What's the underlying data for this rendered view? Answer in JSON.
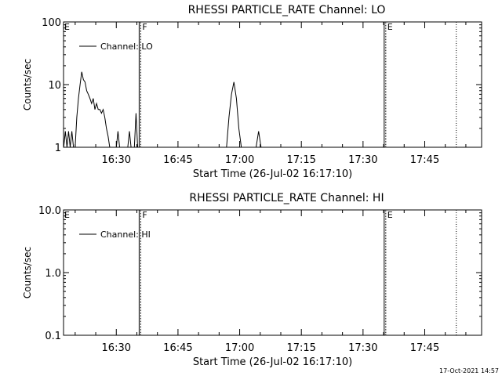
{
  "footer": {
    "timestamp": "17-Oct-2021 14:57"
  },
  "chart_data": [
    {
      "type": "line",
      "title": "RHESSI PARTICLE_RATE Channel: LO",
      "xlabel": "Start Time (26-Jul-02 16:17:10)",
      "ylabel": "Counts/sec",
      "yscale": "log",
      "ylim": [
        1,
        100
      ],
      "yticks": [
        1,
        10,
        100
      ],
      "ytick_labels": [
        "1",
        "10",
        "100"
      ],
      "xlim": [
        "16:17:10",
        "17:58:50"
      ],
      "xticks": [
        "16:30",
        "16:45",
        "17:00",
        "17:15",
        "17:30",
        "17:45"
      ],
      "xticks_minutes": [
        30,
        45,
        60,
        75,
        90,
        105
      ],
      "xlim_minutes": [
        17.17,
        118.83
      ],
      "legend": {
        "position": "top-left",
        "entries": [
          "Channel: LO"
        ]
      },
      "grid": false,
      "markers": [
        {
          "label": "E",
          "time": "16:17:10",
          "style": "edge"
        },
        {
          "label": "F",
          "time": "16:35:45",
          "style": "solid"
        },
        {
          "label": "E",
          "time": "17:35:20",
          "style": "solid"
        },
        {
          "time": "17:52:40",
          "style": "dotted"
        }
      ],
      "series": [
        {
          "name": "Channel: LO",
          "x_minutes": [
            17.2,
            17.6,
            18.0,
            18.4,
            18.8,
            19.2,
            19.6,
            20.0,
            20.4,
            20.8,
            21.2,
            21.6,
            22.0,
            22.4,
            22.8,
            23.2,
            23.6,
            24.0,
            24.4,
            24.8,
            25.2,
            25.6,
            26.0,
            26.4,
            26.8,
            27.2,
            27.6,
            28.0,
            28.4,
            28.8,
            29.2,
            29.6,
            30.0,
            30.4,
            30.8,
            31.2,
            31.6,
            32.0,
            32.4,
            32.8,
            33.2,
            33.6,
            34.0,
            34.4,
            34.8,
            35.2,
            35.6,
            36.0,
            36.4,
            56.0,
            56.8,
            57.4,
            58.0,
            58.6,
            59.2,
            59.8,
            60.4,
            61.0,
            61.6,
            62.2,
            62.8,
            63.4,
            64.0,
            64.6,
            65.2,
            65.8,
            66.4,
            67.0
          ],
          "y": [
            1.0,
            1.8,
            1.0,
            1.8,
            1.0,
            1.8,
            1.0,
            1.0,
            3.0,
            6.0,
            10.0,
            16.0,
            12.0,
            11.0,
            8.0,
            7.0,
            6.0,
            5.0,
            6.0,
            4.0,
            5.0,
            4.0,
            4.0,
            3.5,
            4.0,
            3.0,
            2.0,
            1.5,
            1.0,
            1.0,
            1.0,
            1.0,
            1.0,
            1.8,
            1.0,
            1.0,
            1.0,
            1.0,
            1.0,
            1.0,
            1.8,
            1.0,
            1.0,
            1.0,
            3.5,
            1.0,
            1.0,
            1.0,
            1.0,
            1.0,
            1.0,
            3.0,
            7.0,
            11.0,
            6.0,
            2.0,
            1.0,
            1.0,
            1.0,
            1.0,
            1.0,
            1.0,
            1.0,
            1.8,
            1.0,
            1.0,
            1.0,
            1.0
          ]
        }
      ]
    },
    {
      "type": "line",
      "title": "RHESSI PARTICLE_RATE Channel: HI",
      "xlabel": "Start Time (26-Jul-02 16:17:10)",
      "ylabel": "Counts/sec",
      "yscale": "log",
      "ylim": [
        0.1,
        10
      ],
      "yticks": [
        0.1,
        1,
        10
      ],
      "ytick_labels": [
        "0.1",
        "1.0",
        "10.0"
      ],
      "xlim": [
        "16:17:10",
        "17:58:50"
      ],
      "xticks": [
        "16:30",
        "16:45",
        "17:00",
        "17:15",
        "17:30",
        "17:45"
      ],
      "xticks_minutes": [
        30,
        45,
        60,
        75,
        90,
        105
      ],
      "xlim_minutes": [
        17.17,
        118.83
      ],
      "legend": {
        "position": "top-left",
        "entries": [
          "Channel: HI"
        ]
      },
      "grid": false,
      "markers": [
        {
          "label": "E",
          "time": "16:17:10",
          "style": "edge"
        },
        {
          "label": "F",
          "time": "16:35:45",
          "style": "solid"
        },
        {
          "label": "E",
          "time": "17:35:20",
          "style": "solid"
        },
        {
          "time": "17:52:40",
          "style": "dotted"
        }
      ],
      "series": [
        {
          "name": "Channel: HI",
          "x_minutes": [],
          "y": []
        }
      ]
    }
  ]
}
